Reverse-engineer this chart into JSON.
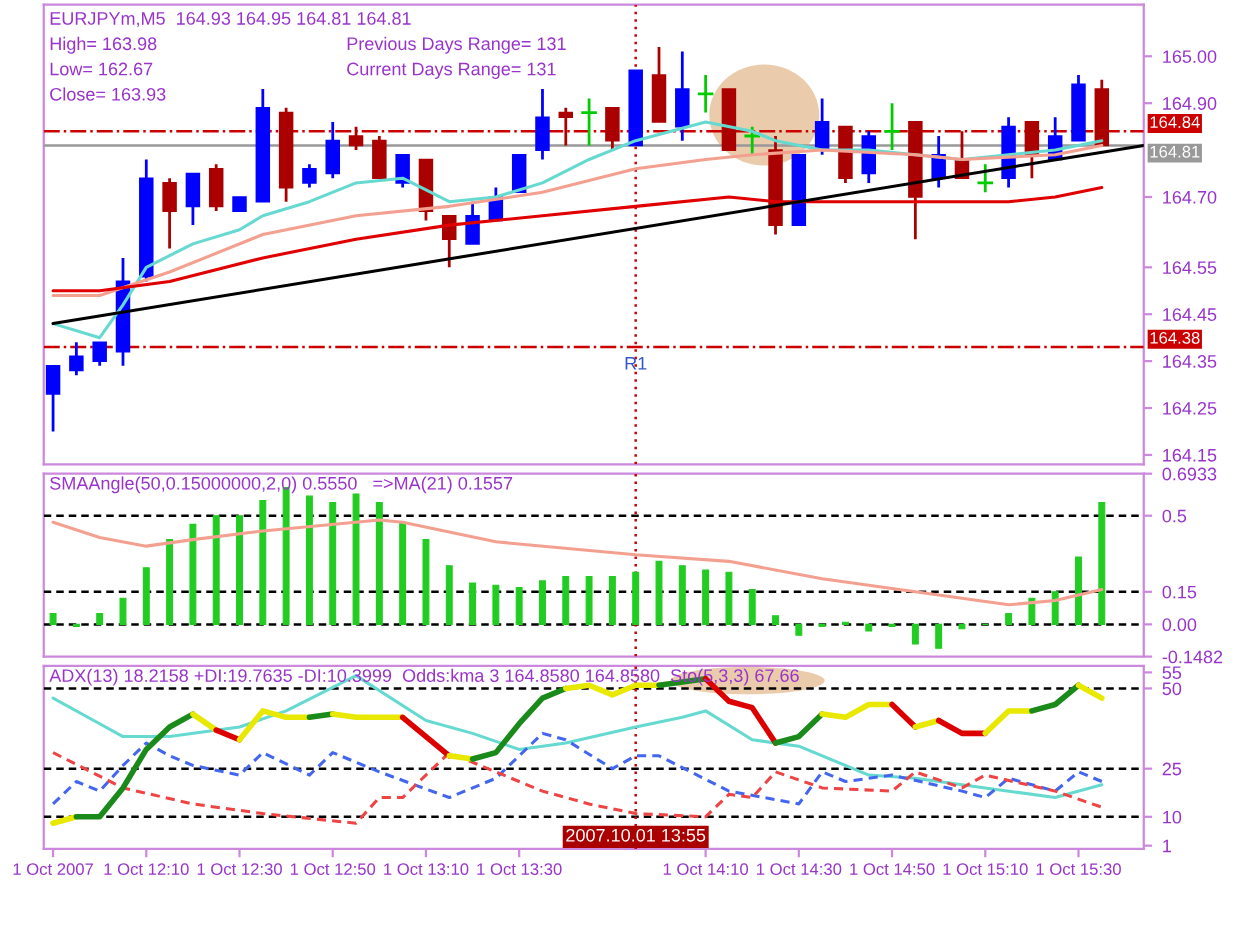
{
  "chart_data": [
    {
      "type": "candlestick",
      "title": "EURJPYm,M5  164.93 164.95 164.81 164.81",
      "annotations": [
        "High= 163.98",
        "Previous Days Range= 131",
        "Low= 162.67",
        "Current Days Range= 131",
        "Close= 163.93",
        {
          "text": "R1",
          "x": "2007-10-01T13:55",
          "y": 164.36
        }
      ],
      "x": [
        "2007-10-01T11:50",
        "2007-10-01T11:55",
        "2007-10-01T12:00",
        "2007-10-01T12:05",
        "2007-10-01T12:10",
        "2007-10-01T12:15",
        "2007-10-01T12:20",
        "2007-10-01T12:25",
        "2007-10-01T12:30",
        "2007-10-01T12:35",
        "2007-10-01T12:40",
        "2007-10-01T12:45",
        "2007-10-01T12:50",
        "2007-10-01T12:55",
        "2007-10-01T13:00",
        "2007-10-01T13:05",
        "2007-10-01T13:10",
        "2007-10-01T13:15",
        "2007-10-01T13:20",
        "2007-10-01T13:25",
        "2007-10-01T13:30",
        "2007-10-01T13:35",
        "2007-10-01T13:40",
        "2007-10-01T13:45",
        "2007-10-01T13:50",
        "2007-10-01T13:55",
        "2007-10-01T14:00",
        "2007-10-01T14:05",
        "2007-10-01T14:10",
        "2007-10-01T14:15",
        "2007-10-01T14:20",
        "2007-10-01T14:25",
        "2007-10-01T14:30",
        "2007-10-01T14:35",
        "2007-10-01T14:40",
        "2007-10-01T14:45",
        "2007-10-01T14:50",
        "2007-10-01T14:55",
        "2007-10-01T15:00",
        "2007-10-01T15:05",
        "2007-10-01T15:10",
        "2007-10-01T15:15",
        "2007-10-01T15:20",
        "2007-10-01T15:25",
        "2007-10-01T15:30",
        "2007-10-01T15:35"
      ],
      "ohlc": [
        [
          164.28,
          164.34,
          164.2,
          164.34
        ],
        [
          164.33,
          164.39,
          164.32,
          164.36
        ],
        [
          164.35,
          164.39,
          164.34,
          164.39
        ],
        [
          164.37,
          164.57,
          164.34,
          164.52
        ],
        [
          164.53,
          164.78,
          164.52,
          164.74
        ],
        [
          164.73,
          164.74,
          164.59,
          164.67
        ],
        [
          164.68,
          164.75,
          164.64,
          164.75
        ],
        [
          164.76,
          164.77,
          164.67,
          164.68
        ],
        [
          164.67,
          164.7,
          164.67,
          164.7
        ],
        [
          164.69,
          164.93,
          164.69,
          164.89
        ],
        [
          164.88,
          164.89,
          164.69,
          164.72
        ],
        [
          164.73,
          164.77,
          164.72,
          164.76
        ],
        [
          164.75,
          164.86,
          164.74,
          164.82
        ],
        [
          164.83,
          164.85,
          164.8,
          164.81
        ],
        [
          164.82,
          164.83,
          164.74,
          164.74
        ],
        [
          164.73,
          164.79,
          164.72,
          164.79
        ],
        [
          164.78,
          164.78,
          164.65,
          164.67
        ],
        [
          164.66,
          164.66,
          164.55,
          164.61
        ],
        [
          164.6,
          164.69,
          164.6,
          164.66
        ],
        [
          164.65,
          164.72,
          164.65,
          164.7
        ],
        [
          164.71,
          164.79,
          164.71,
          164.79
        ],
        [
          164.8,
          164.93,
          164.78,
          164.87
        ],
        [
          164.88,
          164.89,
          164.81,
          164.87
        ],
        [
          164.88,
          164.91,
          164.81,
          164.88
        ],
        [
          164.89,
          164.89,
          164.8,
          164.82
        ],
        [
          164.81,
          164.97,
          164.81,
          164.97
        ],
        [
          164.96,
          165.02,
          164.86,
          164.86
        ],
        [
          164.85,
          165.01,
          164.82,
          164.93
        ],
        [
          164.92,
          164.96,
          164.88,
          164.92
        ],
        [
          164.93,
          164.93,
          164.8,
          164.8
        ],
        [
          164.83,
          164.85,
          164.79,
          164.83
        ],
        [
          164.8,
          164.83,
          164.62,
          164.64
        ],
        [
          164.64,
          164.79,
          164.64,
          164.79
        ],
        [
          164.8,
          164.91,
          164.79,
          164.86
        ],
        [
          164.85,
          164.85,
          164.73,
          164.74
        ],
        [
          164.75,
          164.84,
          164.73,
          164.83
        ],
        [
          164.84,
          164.9,
          164.8,
          164.84
        ],
        [
          164.86,
          164.86,
          164.61,
          164.7
        ],
        [
          164.74,
          164.83,
          164.72,
          164.79
        ],
        [
          164.78,
          164.84,
          164.74,
          164.74
        ],
        [
          164.73,
          164.77,
          164.71,
          164.73
        ],
        [
          164.74,
          164.87,
          164.72,
          164.85
        ],
        [
          164.86,
          164.86,
          164.74,
          164.79
        ],
        [
          164.78,
          164.87,
          164.78,
          164.83
        ],
        [
          164.82,
          164.96,
          164.82,
          164.94
        ],
        [
          164.93,
          164.95,
          164.81,
          164.81
        ]
      ],
      "colors": [
        "#0000ff",
        "#0000ff",
        "#0000ff",
        "#0000ff",
        "#0000ff",
        "#aa0000",
        "#0000ff",
        "#aa0000",
        "#0000ff",
        "#0000ff",
        "#aa0000",
        "#0000ff",
        "#0000ff",
        "#aa0000",
        "#aa0000",
        "#0000ff",
        "#aa0000",
        "#aa0000",
        "#0000ff",
        "#0000ff",
        "#0000ff",
        "#0000ff",
        "#aa0000",
        "#00cc00",
        "#aa0000",
        "#0000ff",
        "#aa0000",
        "#0000ff",
        "#00cc00",
        "#aa0000",
        "#00cc00",
        "#aa0000",
        "#0000ff",
        "#0000ff",
        "#aa0000",
        "#0000ff",
        "#00cc00",
        "#aa0000",
        "#0000ff",
        "#aa0000",
        "#00cc00",
        "#0000ff",
        "#aa0000",
        "#0000ff",
        "#0000ff",
        "#aa0000"
      ],
      "series": [
        {
          "type": "line",
          "color": "#66d9d0",
          "x": [
            "2007-10-01T11:50",
            "2007-10-01T12:00",
            "2007-10-01T12:05",
            "2007-10-01T12:10",
            "2007-10-01T12:20",
            "2007-10-01T12:30",
            "2007-10-01T12:35",
            "2007-10-01T12:45",
            "2007-10-01T12:55",
            "2007-10-01T13:05",
            "2007-10-01T13:15",
            "2007-10-01T13:25",
            "2007-10-01T13:35",
            "2007-10-01T13:45",
            "2007-10-01T13:55",
            "2007-10-01T14:10",
            "2007-10-01T14:20",
            "2007-10-01T14:25",
            "2007-10-01T14:35",
            "2007-10-01T14:45",
            "2007-10-01T14:55",
            "2007-10-01T15:05",
            "2007-10-01T15:15",
            "2007-10-01T15:25",
            "2007-10-01T15:35"
          ],
          "values": [
            164.43,
            164.4,
            164.47,
            164.55,
            164.6,
            164.63,
            164.66,
            164.69,
            164.73,
            164.74,
            164.69,
            164.7,
            164.73,
            164.78,
            164.82,
            164.86,
            164.84,
            164.82,
            164.8,
            164.8,
            164.79,
            164.78,
            164.79,
            164.8,
            164.82
          ]
        },
        {
          "type": "line",
          "color": "#f4a090",
          "x": [
            "2007-10-01T11:50",
            "2007-10-01T12:00",
            "2007-10-01T12:15",
            "2007-10-01T12:35",
            "2007-10-01T12:55",
            "2007-10-01T13:15",
            "2007-10-01T13:35",
            "2007-10-01T13:55",
            "2007-10-01T14:10",
            "2007-10-01T14:20",
            "2007-10-01T14:35",
            "2007-10-01T14:55",
            "2007-10-01T15:05",
            "2007-10-01T15:25",
            "2007-10-01T15:35"
          ],
          "values": [
            164.49,
            164.49,
            164.54,
            164.62,
            164.66,
            164.68,
            164.71,
            164.76,
            164.78,
            164.79,
            164.8,
            164.79,
            164.78,
            164.79,
            164.81
          ]
        },
        {
          "type": "line",
          "color": "#e00000",
          "x": [
            "2007-10-01T11:50",
            "2007-10-01T12:00",
            "2007-10-01T12:15",
            "2007-10-01T12:35",
            "2007-10-01T12:55",
            "2007-10-01T13:15",
            "2007-10-01T13:35",
            "2007-10-01T13:55",
            "2007-10-01T14:15",
            "2007-10-01T14:25",
            "2007-10-01T14:50",
            "2007-10-01T15:15",
            "2007-10-01T15:25",
            "2007-10-01T15:35"
          ],
          "values": [
            164.5,
            164.5,
            164.52,
            164.57,
            164.61,
            164.64,
            164.66,
            164.68,
            164.7,
            164.69,
            164.69,
            164.69,
            164.7,
            164.72
          ]
        },
        {
          "type": "line",
          "color": "#000000",
          "x": [
            "2007-10-01T11:50",
            "2007-10-01T15:44"
          ],
          "values": [
            164.43,
            164.81
          ]
        }
      ],
      "ref_lines": [
        {
          "axis": "y",
          "value": 164.84,
          "label": "164.84",
          "color": "#cc0000",
          "line_style": "dashdot"
        },
        {
          "axis": "y",
          "value": 164.81,
          "label": "164.81",
          "color": "#999999",
          "line_style": "solid"
        },
        {
          "axis": "y",
          "value": 164.38,
          "label": "164.38",
          "color": "#cc0000",
          "line_style": "dashdot"
        },
        {
          "axis": "x",
          "value": "2007-10-01T13:55",
          "label": null,
          "color": "#cc0000",
          "line_style": "dotted"
        }
      ],
      "xlim": [
        "2007-10-01T11:48",
        "2007-10-01T15:44"
      ],
      "ylim": [
        164.13,
        165.11
      ],
      "yticks": [
        {
          "value": 165.0,
          "label": "165.00"
        },
        {
          "value": 164.9,
          "label": "164.90"
        },
        {
          "value": 164.7,
          "label": "164.70"
        },
        {
          "value": 164.55,
          "label": "164.55"
        },
        {
          "value": 164.45,
          "label": "164.45"
        },
        {
          "value": 164.35,
          "label": "164.35"
        },
        {
          "value": 164.25,
          "label": "164.25"
        },
        {
          "value": 164.15,
          "label": "164.15"
        }
      ],
      "tick_labels": "y"
    },
    {
      "type": "bar",
      "title": "SMAAngle(50,0.15000000,2,0) 0.5550   =>MA(21) 0.1557",
      "color": "#22cc22",
      "x": [
        "2007-10-01T11:50",
        "2007-10-01T11:55",
        "2007-10-01T12:00",
        "2007-10-01T12:05",
        "2007-10-01T12:10",
        "2007-10-01T12:15",
        "2007-10-01T12:20",
        "2007-10-01T12:25",
        "2007-10-01T12:30",
        "2007-10-01T12:35",
        "2007-10-01T12:40",
        "2007-10-01T12:45",
        "2007-10-01T12:50",
        "2007-10-01T12:55",
        "2007-10-01T13:00",
        "2007-10-01T13:05",
        "2007-10-01T13:10",
        "2007-10-01T13:15",
        "2007-10-01T13:20",
        "2007-10-01T13:25",
        "2007-10-01T13:30",
        "2007-10-01T13:35",
        "2007-10-01T13:40",
        "2007-10-01T13:45",
        "2007-10-01T13:50",
        "2007-10-01T13:55",
        "2007-10-01T14:00",
        "2007-10-01T14:05",
        "2007-10-01T14:10",
        "2007-10-01T14:15",
        "2007-10-01T14:20",
        "2007-10-01T14:25",
        "2007-10-01T14:30",
        "2007-10-01T14:35",
        "2007-10-01T14:40",
        "2007-10-01T14:45",
        "2007-10-01T14:50",
        "2007-10-01T14:55",
        "2007-10-01T15:00",
        "2007-10-01T15:05",
        "2007-10-01T15:10",
        "2007-10-01T15:15",
        "2007-10-01T15:20",
        "2007-10-01T15:25",
        "2007-10-01T15:30",
        "2007-10-01T15:35"
      ],
      "values": [
        0.05,
        -0.01,
        0.05,
        0.12,
        0.26,
        0.39,
        0.46,
        0.5,
        0.5,
        0.57,
        0.63,
        0.59,
        0.56,
        0.6,
        0.56,
        0.47,
        0.39,
        0.27,
        0.19,
        0.18,
        0.17,
        0.2,
        0.22,
        0.22,
        0.22,
        0.24,
        0.29,
        0.27,
        0.25,
        0.24,
        0.16,
        0.04,
        -0.05,
        -0.01,
        0.01,
        -0.03,
        -0.01,
        -0.09,
        -0.11,
        -0.02,
        0.0,
        0.05,
        0.12,
        0.15,
        0.31,
        0.56
      ],
      "series": [
        {
          "type": "line",
          "color": "#f4a090",
          "x": [
            "2007-10-01T11:50",
            "2007-10-01T12:00",
            "2007-10-01T12:10",
            "2007-10-01T12:20",
            "2007-10-01T12:35",
            "2007-10-01T13:00",
            "2007-10-01T13:05",
            "2007-10-01T13:25",
            "2007-10-01T13:55",
            "2007-10-01T14:15",
            "2007-10-01T14:35",
            "2007-10-01T14:55",
            "2007-10-01T15:15",
            "2007-10-01T15:25",
            "2007-10-01T15:35"
          ],
          "values": [
            0.47,
            0.4,
            0.36,
            0.39,
            0.43,
            0.48,
            0.47,
            0.38,
            0.32,
            0.29,
            0.21,
            0.15,
            0.09,
            0.11,
            0.16
          ]
        }
      ],
      "ref_lines": [
        {
          "axis": "y",
          "value": 0.5,
          "label": null,
          "color": "#000000",
          "line_style": "dashed"
        },
        {
          "axis": "y",
          "value": 0.15,
          "label": null,
          "color": "#000000",
          "line_style": "dashed"
        },
        {
          "axis": "y",
          "value": 0.0,
          "label": null,
          "color": "#000000",
          "line_style": "dashed"
        },
        {
          "axis": "x",
          "value": "2007-10-01T13:55",
          "label": null,
          "color": "#cc0000",
          "line_style": "dotted"
        }
      ],
      "xlim": [
        "2007-10-01T11:48",
        "2007-10-01T15:44"
      ],
      "ylim": [
        -0.1482,
        0.6933
      ],
      "yticks": [
        {
          "value": 0.6933,
          "label": "0.6933"
        },
        {
          "value": 0.5,
          "label": "0.5"
        },
        {
          "value": 0.15,
          "label": "0.15"
        },
        {
          "value": 0.0,
          "label": "0.00"
        },
        {
          "value": -0.1482,
          "label": "-0.1482"
        }
      ],
      "tick_labels": "y"
    },
    {
      "type": "line",
      "title": "ADX(13) 18.2158 +DI:19.7635 -DI:10.3999  Odds:kma 3 164.8580 164.8580  Sto(5,3,3) 67.66",
      "series": [
        {
          "type": "line",
          "color": "#66d9d0",
          "x": [
            "2007-10-01T11:50",
            "2007-10-01T12:00",
            "2007-10-01T12:05",
            "2007-10-01T12:15",
            "2007-10-01T12:30",
            "2007-10-01T12:40",
            "2007-10-01T12:55",
            "2007-10-01T13:10",
            "2007-10-01T13:20",
            "2007-10-01T13:30",
            "2007-10-01T13:40",
            "2007-10-01T13:55",
            "2007-10-01T14:05",
            "2007-10-01T14:10",
            "2007-10-01T14:20",
            "2007-10-01T14:30",
            "2007-10-01T14:45",
            "2007-10-01T14:55",
            "2007-10-01T15:10",
            "2007-10-01T15:25",
            "2007-10-01T15:35"
          ],
          "values": [
            47,
            39,
            35,
            35,
            38,
            43,
            54,
            40,
            36,
            31,
            33,
            38,
            41,
            43,
            34,
            32,
            23,
            22,
            19,
            16,
            20
          ]
        },
        {
          "type": "line",
          "color": "#4466ee",
          "line_style": "dashed",
          "x": [
            "2007-10-01T11:50",
            "2007-10-01T11:55",
            "2007-10-01T12:00",
            "2007-10-01T12:05",
            "2007-10-01T12:10",
            "2007-10-01T12:15",
            "2007-10-01T12:20",
            "2007-10-01T12:30",
            "2007-10-01T12:35",
            "2007-10-01T12:45",
            "2007-10-01T12:50",
            "2007-10-01T13:00",
            "2007-10-01T13:15",
            "2007-10-01T13:25",
            "2007-10-01T13:35",
            "2007-10-01T13:40",
            "2007-10-01T13:50",
            "2007-10-01T13:55",
            "2007-10-01T14:00",
            "2007-10-01T14:15",
            "2007-10-01T14:30",
            "2007-10-01T14:35",
            "2007-10-01T14:40",
            "2007-10-01T14:50",
            "2007-10-01T15:05",
            "2007-10-01T15:10",
            "2007-10-01T15:15",
            "2007-10-01T15:25",
            "2007-10-01T15:30",
            "2007-10-01T15:35"
          ],
          "values": [
            14,
            21,
            18,
            26,
            33,
            29,
            26,
            23,
            30,
            23,
            30,
            24,
            16,
            22,
            36,
            34,
            25,
            29,
            29,
            18,
            14,
            24,
            21,
            23,
            18,
            16,
            22,
            18,
            24,
            21
          ]
        },
        {
          "type": "line",
          "color": "#ee4444",
          "line_style": "dashed",
          "x": [
            "2007-10-01T11:50",
            "2007-10-01T12:05",
            "2007-10-01T12:20",
            "2007-10-01T12:35",
            "2007-10-01T12:55",
            "2007-10-01T13:00",
            "2007-10-01T13:05",
            "2007-10-01T13:15",
            "2007-10-01T13:25",
            "2007-10-01T13:35",
            "2007-10-01T13:45",
            "2007-10-01T13:55",
            "2007-10-01T14:10",
            "2007-10-01T14:15",
            "2007-10-01T14:20",
            "2007-10-01T14:25",
            "2007-10-01T14:35",
            "2007-10-01T14:50",
            "2007-10-01T14:55",
            "2007-10-01T15:05",
            "2007-10-01T15:10",
            "2007-10-01T15:25",
            "2007-10-01T15:35"
          ],
          "values": [
            30,
            19,
            14,
            11,
            8,
            16,
            16,
            30,
            24,
            18,
            14,
            11,
            10,
            17,
            16,
            24,
            19,
            18,
            24,
            19,
            23,
            18,
            13
          ]
        },
        {
          "type": "line",
          "color": "#e8e800",
          "x": [
            "2007-10-01T11:50",
            "2007-10-01T11:55"
          ],
          "values": [
            8,
            10
          ]
        },
        {
          "type": "line",
          "color": "#1a8a1a",
          "x": [
            "2007-10-01T11:55",
            "2007-10-01T12:00",
            "2007-10-01T12:05",
            "2007-10-01T12:10",
            "2007-10-01T12:15",
            "2007-10-01T12:20"
          ],
          "values": [
            10,
            10,
            19,
            31,
            38,
            42
          ]
        },
        {
          "type": "line",
          "color": "#e8e800",
          "x": [
            "2007-10-01T12:20",
            "2007-10-01T12:25"
          ],
          "values": [
            42,
            37
          ]
        },
        {
          "type": "line",
          "color": "#dd0000",
          "x": [
            "2007-10-01T12:25",
            "2007-10-01T12:30"
          ],
          "values": [
            37,
            34
          ]
        },
        {
          "type": "line",
          "color": "#e8e800",
          "x": [
            "2007-10-01T12:30",
            "2007-10-01T12:35",
            "2007-10-01T12:40",
            "2007-10-01T12:45"
          ],
          "values": [
            34,
            43,
            41,
            41
          ]
        },
        {
          "type": "line",
          "color": "#1a8a1a",
          "x": [
            "2007-10-01T12:45",
            "2007-10-01T12:50"
          ],
          "values": [
            41,
            42
          ]
        },
        {
          "type": "line",
          "color": "#e8e800",
          "x": [
            "2007-10-01T12:50",
            "2007-10-01T12:55",
            "2007-10-01T13:00",
            "2007-10-01T13:05"
          ],
          "values": [
            42,
            41,
            41,
            41
          ]
        },
        {
          "type": "line",
          "color": "#dd0000",
          "x": [
            "2007-10-01T13:05",
            "2007-10-01T13:10",
            "2007-10-01T13:15"
          ],
          "values": [
            41,
            35,
            29
          ]
        },
        {
          "type": "line",
          "color": "#e8e800",
          "x": [
            "2007-10-01T13:15",
            "2007-10-01T13:20"
          ],
          "values": [
            29,
            28
          ]
        },
        {
          "type": "line",
          "color": "#1a8a1a",
          "x": [
            "2007-10-01T13:20",
            "2007-10-01T13:25",
            "2007-10-01T13:30",
            "2007-10-01T13:35",
            "2007-10-01T13:40"
          ],
          "values": [
            28,
            30,
            39,
            47,
            50
          ]
        },
        {
          "type": "line",
          "color": "#e8e800",
          "x": [
            "2007-10-01T13:40",
            "2007-10-01T13:45",
            "2007-10-01T13:50",
            "2007-10-01T13:55",
            "2007-10-01T14:00"
          ],
          "values": [
            50,
            51,
            48,
            51,
            51
          ]
        },
        {
          "type": "line",
          "color": "#1a8a1a",
          "x": [
            "2007-10-01T14:00",
            "2007-10-01T14:05",
            "2007-10-01T14:10"
          ],
          "values": [
            51,
            52,
            53
          ]
        },
        {
          "type": "line",
          "color": "#dd0000",
          "x": [
            "2007-10-01T14:10",
            "2007-10-01T14:15",
            "2007-10-01T14:20",
            "2007-10-01T14:25"
          ],
          "values": [
            53,
            46,
            44,
            33
          ]
        },
        {
          "type": "line",
          "color": "#1a8a1a",
          "x": [
            "2007-10-01T14:25",
            "2007-10-01T14:30",
            "2007-10-01T14:35"
          ],
          "values": [
            33,
            35,
            42
          ]
        },
        {
          "type": "line",
          "color": "#e8e800",
          "x": [
            "2007-10-01T14:35",
            "2007-10-01T14:40",
            "2007-10-01T14:45",
            "2007-10-01T14:50"
          ],
          "values": [
            42,
            41,
            45,
            45
          ]
        },
        {
          "type": "line",
          "color": "#dd0000",
          "x": [
            "2007-10-01T14:50",
            "2007-10-01T14:55"
          ],
          "values": [
            45,
            38
          ]
        },
        {
          "type": "line",
          "color": "#e8e800",
          "x": [
            "2007-10-01T14:55",
            "2007-10-01T15:00"
          ],
          "values": [
            38,
            40
          ]
        },
        {
          "type": "line",
          "color": "#dd0000",
          "x": [
            "2007-10-01T15:00",
            "2007-10-01T15:05",
            "2007-10-01T15:10"
          ],
          "values": [
            40,
            36,
            36
          ]
        },
        {
          "type": "line",
          "color": "#e8e800",
          "x": [
            "2007-10-01T15:10",
            "2007-10-01T15:15",
            "2007-10-01T15:20"
          ],
          "values": [
            36,
            43,
            43
          ]
        },
        {
          "type": "line",
          "color": "#1a8a1a",
          "x": [
            "2007-10-01T15:20",
            "2007-10-01T15:25",
            "2007-10-01T15:30"
          ],
          "values": [
            43,
            45,
            51
          ]
        },
        {
          "type": "line",
          "color": "#e8e800",
          "x": [
            "2007-10-01T15:30",
            "2007-10-01T15:35"
          ],
          "values": [
            51,
            47
          ]
        }
      ],
      "ref_lines": [
        {
          "axis": "y",
          "value": 50,
          "label": null,
          "color": "#000000",
          "line_style": "dashed"
        },
        {
          "axis": "y",
          "value": 25,
          "label": null,
          "color": "#000000",
          "line_style": "dashed"
        },
        {
          "axis": "y",
          "value": 10,
          "label": null,
          "color": "#000000",
          "line_style": "dashed"
        },
        {
          "axis": "x",
          "value": "2007-10-01T13:55",
          "label": "2007.10.01 13:55",
          "color": "#cc0000",
          "line_style": "dotted"
        }
      ],
      "xlim": [
        "2007-10-01T11:48",
        "2007-10-01T15:44"
      ],
      "xticks": [
        {
          "value": "2007-10-01T11:50",
          "label": "1 Oct 2007"
        },
        {
          "value": "2007-10-01T12:10",
          "label": "1 Oct 12:10"
        },
        {
          "value": "2007-10-01T12:30",
          "label": "1 Oct 12:30"
        },
        {
          "value": "2007-10-01T12:50",
          "label": "1 Oct 12:50"
        },
        {
          "value": "2007-10-01T13:10",
          "label": "1 Oct 13:10"
        },
        {
          "value": "2007-10-01T13:30",
          "label": "1 Oct 13:30"
        },
        {
          "value": "2007-10-01T14:10",
          "label": "1 Oct 14:10"
        },
        {
          "value": "2007-10-01T14:30",
          "label": "1 Oct 14:30"
        },
        {
          "value": "2007-10-01T14:50",
          "label": "1 Oct 14:50"
        },
        {
          "value": "2007-10-01T15:10",
          "label": "1 Oct 15:10"
        },
        {
          "value": "2007-10-01T15:30",
          "label": "1 Oct 15:30"
        }
      ],
      "ylim": [
        0,
        57
      ],
      "yticks": [
        55,
        50,
        25,
        10,
        1
      ]
    }
  ]
}
